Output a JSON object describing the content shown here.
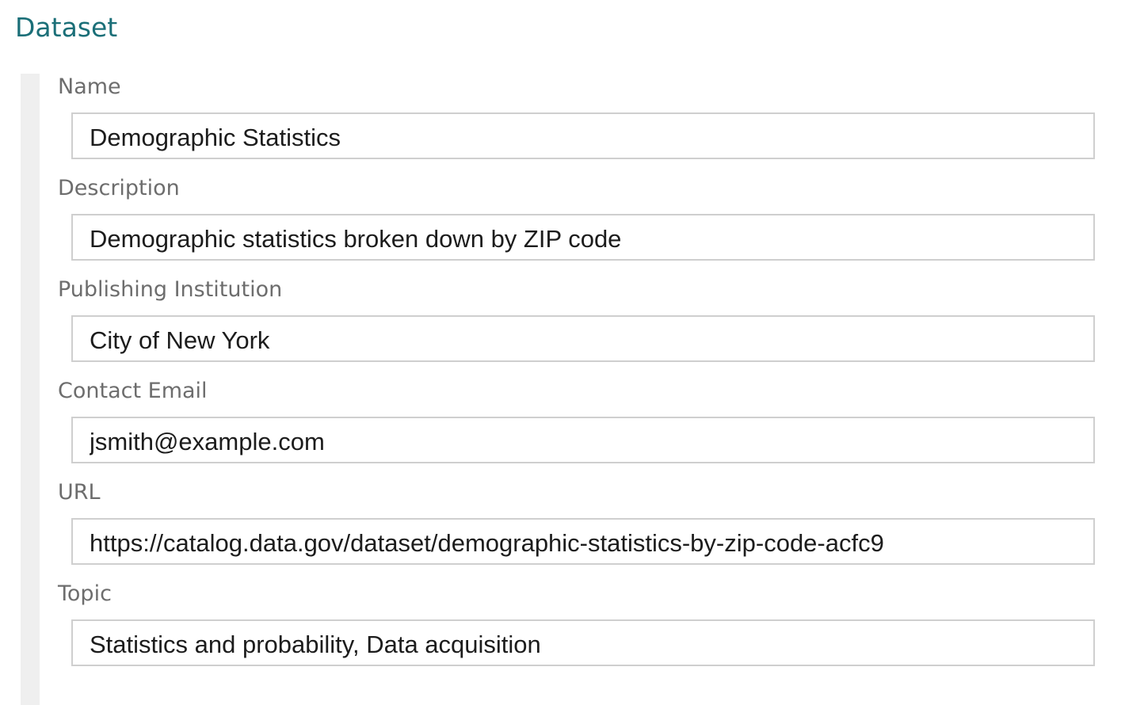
{
  "section": {
    "title": "Dataset"
  },
  "fields": [
    {
      "label": "Name",
      "value": "Demographic Statistics"
    },
    {
      "label": "Description",
      "value": "Demographic statistics broken down by ZIP code"
    },
    {
      "label": "Publishing Institution",
      "value": "City of New York"
    },
    {
      "label": "Contact Email",
      "value": "jsmith@example.com"
    },
    {
      "label": "URL",
      "value": "https://catalog.data.gov/dataset/demographic-statistics-by-zip-code-acfc9"
    },
    {
      "label": "Topic",
      "value": "Statistics and probability, Data acquisition"
    }
  ],
  "colors": {
    "title": "#1b6f78",
    "label": "#6d6d6d",
    "input_border": "#cfcfcf",
    "side_rule": "#efefef"
  }
}
